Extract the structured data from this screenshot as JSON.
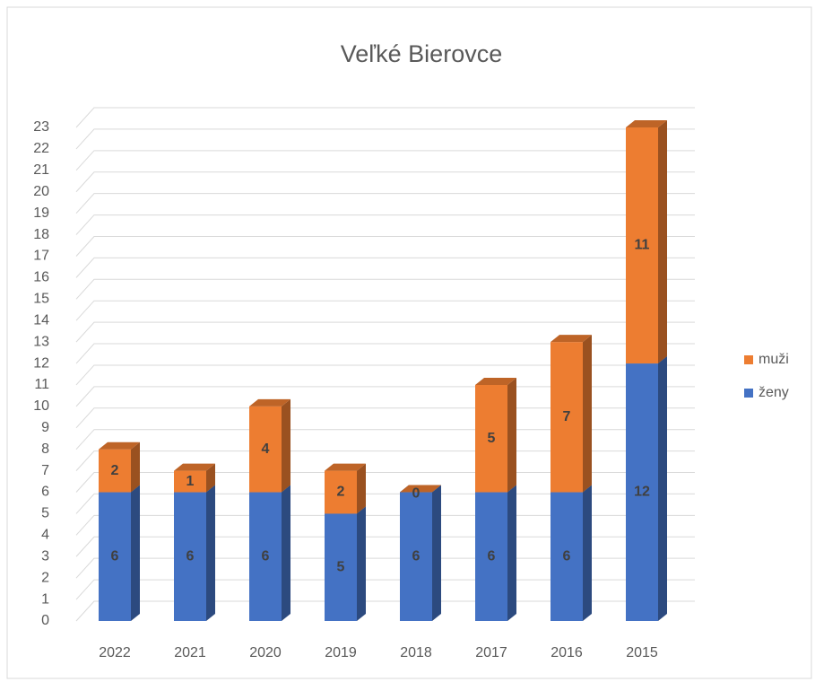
{
  "chart_data": {
    "type": "bar3d-stacked",
    "title": "Veľké Bierovce",
    "categories": [
      "2022",
      "2021",
      "2020",
      "2019",
      "2018",
      "2017",
      "2016",
      "2015"
    ],
    "series": [
      {
        "name": "ženy",
        "color": "#4472c4",
        "values": [
          6,
          6,
          6,
          5,
          6,
          6,
          6,
          12
        ]
      },
      {
        "name": "muži",
        "color": "#ed7d31",
        "values": [
          2,
          1,
          4,
          2,
          0,
          5,
          7,
          11
        ]
      }
    ],
    "ylim": [
      0,
      23
    ],
    "yticks": [
      0,
      1,
      2,
      3,
      4,
      5,
      6,
      7,
      8,
      9,
      10,
      11,
      12,
      13,
      14,
      15,
      16,
      17,
      18,
      19,
      20,
      21,
      22,
      23
    ],
    "grid": true,
    "legend": "right"
  }
}
